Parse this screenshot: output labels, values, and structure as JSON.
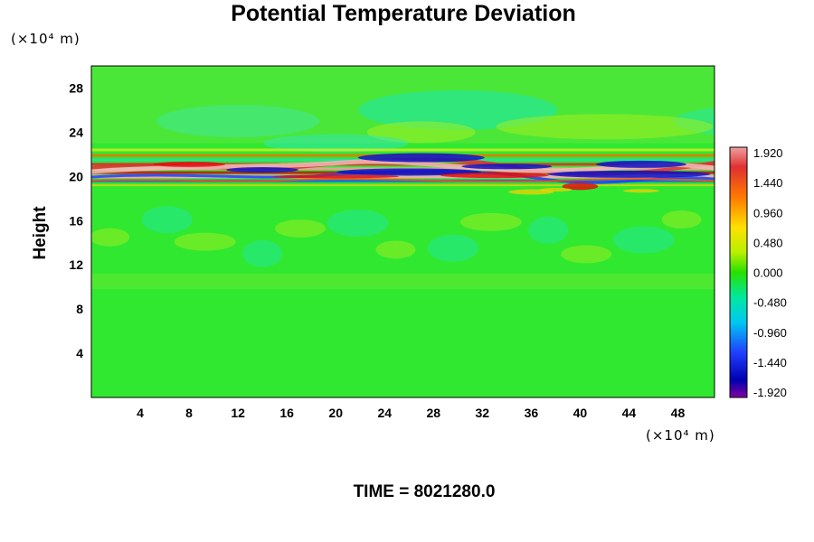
{
  "chart_data": {
    "type": "heatmap",
    "title": "Potential Temperature Deviation",
    "ylabel": "Height",
    "x_unit": "(×10⁴ m)",
    "y_unit": "(×10⁴ m)",
    "xlim": [
      0,
      51
    ],
    "ylim": [
      0,
      30
    ],
    "x_ticks": [
      "4",
      "8",
      "12",
      "16",
      "20",
      "24",
      "28",
      "32",
      "36",
      "40",
      "44",
      "48"
    ],
    "y_ticks": [
      "4",
      "8",
      "12",
      "16",
      "20",
      "24",
      "28"
    ],
    "colorbar": {
      "min": -2.16,
      "max": 2.16,
      "tick_labels": [
        "1.920",
        "1.440",
        "0.960",
        "0.480",
        "0.000",
        "-0.480",
        "-0.960",
        "-1.440",
        "-1.920"
      ]
    },
    "footer": "TIME = 8021280.0",
    "field_description": "Mostly near-zero deviations (green); a strongly perturbed layer near height 20 with alternating positive (red/pink) and negative (blue/purple) bands; weaker wavy perturbations between heights 10 and 18."
  }
}
